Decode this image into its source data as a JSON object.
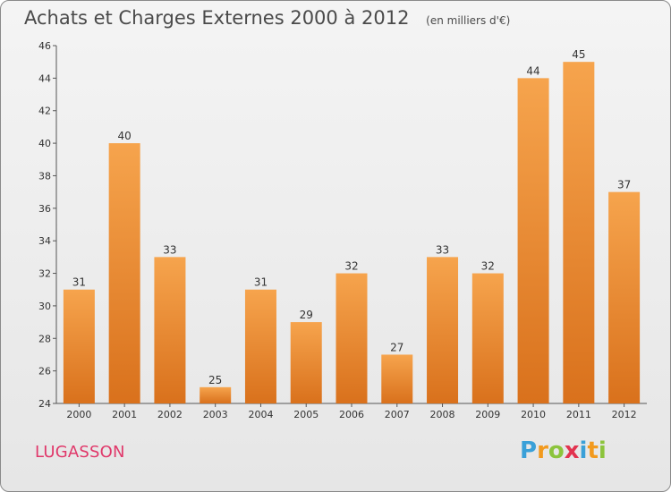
{
  "chart_data": {
    "type": "bar",
    "title": "Achats et Charges Externes 2000 à 2012",
    "subtitle": "(en milliers d'€)",
    "categories": [
      "2000",
      "2001",
      "2002",
      "2003",
      "2004",
      "2005",
      "2006",
      "2007",
      "2008",
      "2009",
      "2010",
      "2011",
      "2012"
    ],
    "values": [
      31,
      40,
      33,
      25,
      31,
      29,
      32,
      27,
      33,
      32,
      44,
      45,
      37
    ],
    "ylim": [
      24,
      46
    ],
    "yticks": [
      24,
      26,
      28,
      30,
      32,
      34,
      36,
      38,
      40,
      42,
      44,
      46
    ],
    "grid": false,
    "bar_color_top": "#f6a44d",
    "bar_color_bottom": "#d9711c"
  },
  "place": "LUGASSON",
  "logo": {
    "text": "Proxiti",
    "letters": [
      {
        "ch": "P",
        "color": "#3aa0d8"
      },
      {
        "ch": "r",
        "color": "#f29a1e"
      },
      {
        "ch": "o",
        "color": "#8cc43c"
      },
      {
        "ch": "x",
        "color": "#e2334f"
      },
      {
        "ch": "i",
        "color": "#3aa0d8"
      },
      {
        "ch": "t",
        "color": "#f29a1e"
      },
      {
        "ch": "i",
        "color": "#8cc43c"
      }
    ]
  }
}
